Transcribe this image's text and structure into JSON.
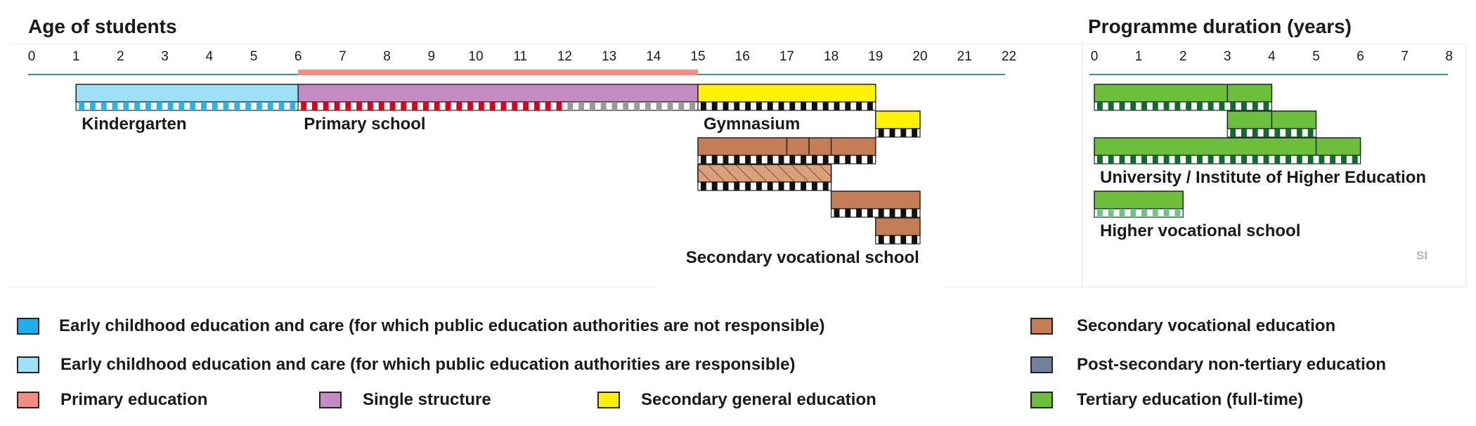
{
  "left_panel": {
    "title": "Age of students",
    "axis": {
      "min": 0,
      "max": 22,
      "tick_labels": [
        "0",
        "1",
        "2",
        "3",
        "4",
        "5",
        "6",
        "7",
        "8",
        "9",
        "10",
        "11",
        "12",
        "13",
        "14",
        "15",
        "16",
        "17",
        "18",
        "19",
        "20",
        "21",
        "22"
      ]
    },
    "compulsory_education": {
      "from": 6,
      "to": 15,
      "color": "#f48b80"
    },
    "programmes": [
      {
        "id": "kindergarten",
        "from": 1,
        "to": 6,
        "row": 0,
        "color": "#9ee0f6",
        "stripe": "#26b5ea",
        "stripe_to": 6,
        "divisions": []
      },
      {
        "id": "primary",
        "from": 6,
        "to": 15,
        "row": 0,
        "color": "#c48cc2",
        "stripe": "#e0001a",
        "stripe_to": 12,
        "stripe2": "#9a9a9a",
        "stripe2_to": 15,
        "divisions": []
      },
      {
        "id": "gymnasium",
        "from": 15,
        "to": 19,
        "row": 0,
        "color": "#fff200",
        "stripe": "#111111",
        "stripe_to": 19,
        "divisions": []
      },
      {
        "id": "gymnasium-extension",
        "from": 19,
        "to": 20,
        "row": 1,
        "color": "#fff200",
        "stripe": "#111111",
        "stripe_to": 20,
        "divisions": []
      },
      {
        "id": "vocational-a",
        "from": 15,
        "to": 19,
        "row": 2,
        "color": "#c47d54",
        "stripe": "#111111",
        "stripe_to": 19,
        "divisions": [
          17,
          17.5,
          18
        ]
      },
      {
        "id": "vocational-b",
        "from": 15,
        "to": 18,
        "row": 3,
        "color": "#d9a07c",
        "hatched": true,
        "stripe": "#111111",
        "stripe_to": 18,
        "divisions": []
      },
      {
        "id": "vocational-c",
        "from": 18,
        "to": 20,
        "row": 4,
        "color": "#c47d54",
        "stripe": "#111111",
        "stripe_to": 20,
        "divisions": []
      },
      {
        "id": "vocational-d",
        "from": 19,
        "to": 20,
        "row": 5,
        "color": "#c47d54",
        "stripe": "#111111",
        "stripe_to": 20,
        "divisions": []
      }
    ],
    "labels": [
      {
        "text": "Kindergarten",
        "at": 1,
        "row": 0
      },
      {
        "text": "Primary school",
        "at": 6,
        "row": 0
      },
      {
        "text": "Gymnasium",
        "at": 15,
        "row": 0
      },
      {
        "text": "Secondary vocational school",
        "at": 14.6,
        "row": 5
      }
    ]
  },
  "right_panel": {
    "title": "Programme duration (years)",
    "axis": {
      "min": 0,
      "max": 8,
      "tick_labels": [
        "0",
        "1",
        "2",
        "3",
        "4",
        "5",
        "6",
        "7",
        "8"
      ]
    },
    "programmes": [
      {
        "id": "tertiary-a",
        "from": 0,
        "to": 4,
        "row": 0,
        "color": "#6cbf3b",
        "stripe": "#0f6b2f",
        "stripe_to": 4,
        "divisions": [
          3
        ]
      },
      {
        "id": "tertiary-b",
        "from": 3,
        "to": 5,
        "row": 1,
        "color": "#6cbf3b",
        "stripe": "#0f6b2f",
        "stripe_to": 5,
        "divisions": [
          4
        ]
      },
      {
        "id": "tertiary-c",
        "from": 0,
        "to": 6,
        "row": 2,
        "color": "#6cbf3b",
        "stripe": "#0f6b2f",
        "stripe_to": 6,
        "divisions": [
          5
        ]
      },
      {
        "id": "higher-vocational",
        "from": 0,
        "to": 2,
        "row": 4,
        "color": "#6cbf3b",
        "stripe": "#6cc48a",
        "stripe_to": 2,
        "divisions": []
      }
    ],
    "labels": [
      {
        "text": "University / Institute of Higher Education",
        "at": 0,
        "row": 2
      },
      {
        "text": "Higher vocational school",
        "at": 0,
        "row": 4
      }
    ]
  },
  "country_code": "SI",
  "legend": [
    {
      "id": "ecec-not-responsible",
      "label": "Early childhood education and care (for which public education authorities are not responsible)",
      "color": "#1ab0ee"
    },
    {
      "id": "ecec-responsible",
      "label": "Early childhood education and care (for which public education authorities are responsible)",
      "color": "#9ee0f6"
    },
    {
      "id": "primary-education",
      "label": "Primary education",
      "color": "#f48b80"
    },
    {
      "id": "single-structure",
      "label": "Single structure",
      "color": "#c48cc2"
    },
    {
      "id": "secondary-general",
      "label": "Secondary general education",
      "color": "#fff200"
    },
    {
      "id": "secondary-vocational",
      "label": "Secondary vocational education",
      "color": "#c47d54"
    },
    {
      "id": "post-secondary",
      "label": "Post-secondary non-tertiary education",
      "color": "#6f819c"
    },
    {
      "id": "tertiary",
      "label": "Tertiary education (full-time)",
      "color": "#6cbf3b"
    }
  ]
}
